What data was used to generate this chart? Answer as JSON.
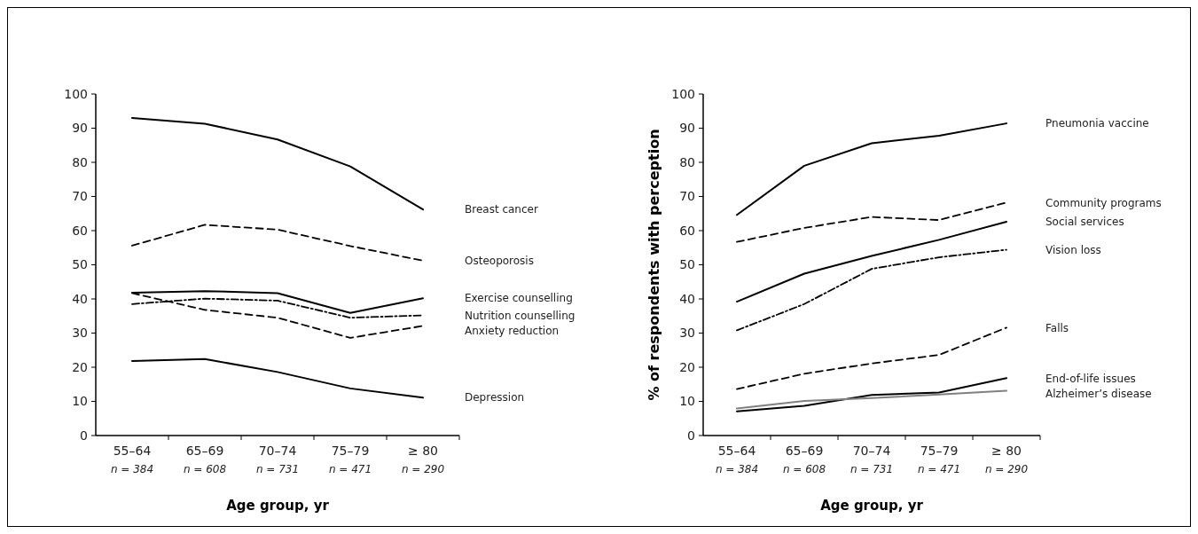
{
  "chart_data": [
    {
      "type": "line",
      "xlabel": "Age group, yr",
      "categories": [
        "55–64\nn = 384",
        "65–69\nn = 608",
        "70–74\nn = 731",
        "75–79\nn = 471",
        "≥ 80\nn = 290"
      ],
      "ylim": [
        0,
        100
      ],
      "yticks": [
        0,
        10,
        20,
        30,
        40,
        50,
        60,
        70,
        80,
        90,
        100
      ],
      "grid": false,
      "series": [
        {
          "name": "Breast cancer",
          "color": "#000000",
          "line_style": "solid",
          "values": [
            93,
            91.3,
            86.7,
            78.8,
            66.2
          ]
        },
        {
          "name": "Osteoporosis",
          "color": "#000000",
          "line_style": "dashed",
          "values": [
            55.6,
            61.7,
            60.3,
            55.5,
            51.2
          ]
        },
        {
          "name": "Exercise counselling",
          "color": "#000000",
          "line_style": "solid",
          "values": [
            41.8,
            42.3,
            41.7,
            35.9,
            40.2
          ]
        },
        {
          "name": "Nutrition counselling",
          "color": "#000000",
          "line_style": "dashdot",
          "values": [
            38.5,
            40.1,
            39.5,
            34.5,
            35.2
          ]
        },
        {
          "name": "Anxiety reduction",
          "color": "#000000",
          "line_style": "dashed",
          "values": [
            41.7,
            36.8,
            34.5,
            28.6,
            32.1
          ]
        },
        {
          "name": "Depression",
          "color": "#000000",
          "line_style": "solid",
          "values": [
            21.8,
            22.4,
            18.6,
            13.8,
            11.1
          ]
        }
      ]
    },
    {
      "type": "line",
      "xlabel": "Age group, yr",
      "ylabel": "% of respondents with perception",
      "categories": [
        "55–64\nn = 384",
        "65–69\nn = 608",
        "70–74\nn = 731",
        "75–79\nn = 471",
        "≥ 80\nn = 290"
      ],
      "ylim": [
        0,
        100
      ],
      "yticks": [
        0,
        10,
        20,
        30,
        40,
        50,
        60,
        70,
        80,
        90,
        100
      ],
      "grid": false,
      "series": [
        {
          "name": "Pneumonia vaccine",
          "color": "#000000",
          "line_style": "solid",
          "values": [
            64.6,
            79,
            85.6,
            87.8,
            91.4
          ]
        },
        {
          "name": "Community programs",
          "color": "#000000",
          "line_style": "dashed",
          "values": [
            56.7,
            60.8,
            64,
            63.1,
            68.2
          ]
        },
        {
          "name": "Social services",
          "color": "#000000",
          "line_style": "solid",
          "values": [
            39.2,
            47.4,
            52.6,
            57.3,
            62.6
          ]
        },
        {
          "name": "Vision loss",
          "color": "#000000",
          "line_style": "dashdot",
          "values": [
            30.8,
            38.5,
            48.8,
            52.2,
            54.4
          ]
        },
        {
          "name": "Falls",
          "color": "#000000",
          "line_style": "dashed",
          "values": [
            13.6,
            18.1,
            21.1,
            23.6,
            31.6
          ]
        },
        {
          "name": "End-of-life issues",
          "color": "#000000",
          "line_style": "solid",
          "values": [
            7.1,
            8.7,
            11.9,
            12.6,
            16.8
          ]
        },
        {
          "name": "Alzheimer’s disease",
          "color": "#808080",
          "line_style": "solid",
          "values": [
            7.9,
            10.1,
            11,
            12,
            13.1
          ]
        }
      ]
    }
  ]
}
